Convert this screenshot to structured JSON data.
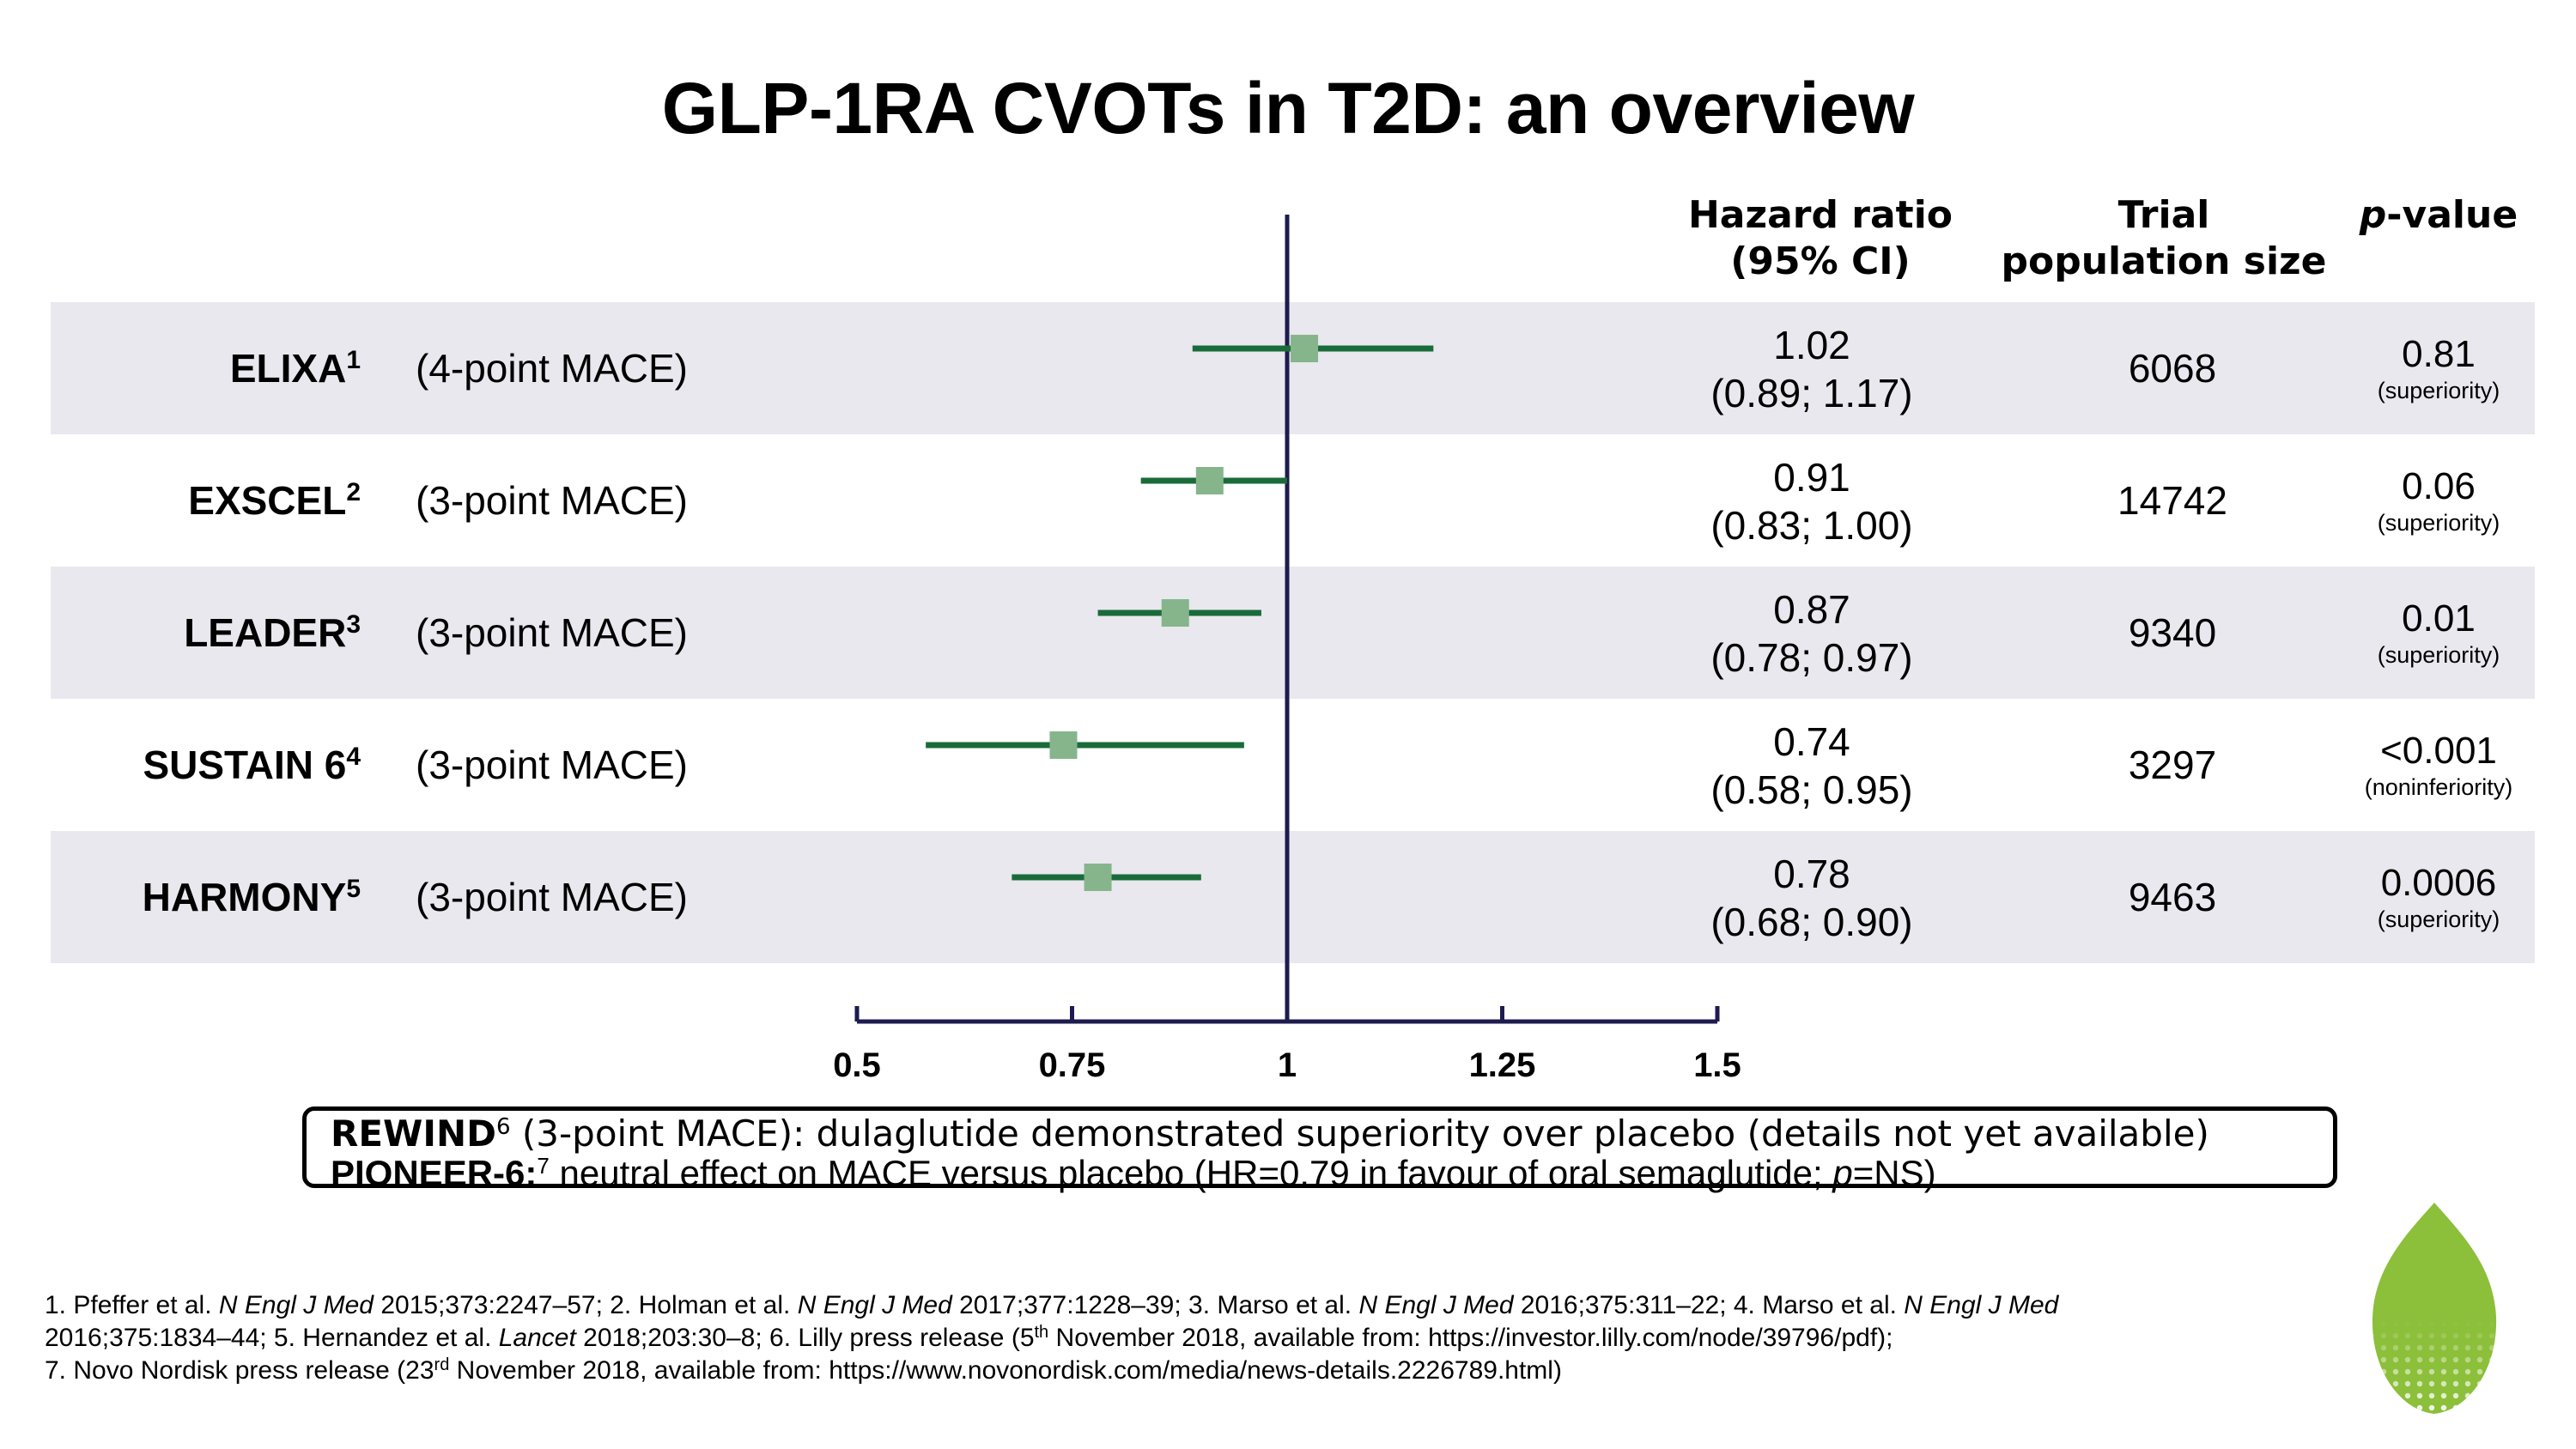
{
  "title": "GLP-1RA CVOTs in T2D: an overview",
  "headers": {
    "hr": "Hazard ratio\n(95% CI)",
    "pop": "Trial\npopulation size",
    "p_italic": "p",
    "p_rest": "-value"
  },
  "colors": {
    "band": "#e9e8ee",
    "ci_line": "#1a6b3a",
    "marker": "#86b58c",
    "axis": "#1d1b4f",
    "logo": "#8cbf3a"
  },
  "rows": [
    {
      "trial": "ELIXA",
      "ref": "1",
      "endpoint": "(4-point MACE)",
      "hr": "1.02",
      "ci": "(0.89; 1.17)",
      "pop": "6068",
      "p": "0.81",
      "p_note": "(superiority)"
    },
    {
      "trial": "EXSCEL",
      "ref": "2",
      "endpoint": "(3-point MACE)",
      "hr": "0.91",
      "ci": "(0.83; 1.00)",
      "pop": "14742",
      "p": "0.06",
      "p_note": "(superiority)"
    },
    {
      "trial": "LEADER",
      "ref": "3",
      "endpoint": "(3-point MACE)",
      "hr": "0.87",
      "ci": "(0.78; 0.97)",
      "pop": "9340",
      "p": "0.01",
      "p_note": "(superiority)"
    },
    {
      "trial": "SUSTAIN 6",
      "ref": "4",
      "endpoint": "(3-point MACE)",
      "hr": "0.74",
      "ci": "(0.58; 0.95)",
      "pop": "3297",
      "p": "<0.001",
      "p_note": "(noninferiority)"
    },
    {
      "trial": "HARMONY",
      "ref": "5",
      "endpoint": "(3-point MACE)",
      "hr": "0.78",
      "ci": "(0.68; 0.90)",
      "pop": "9463",
      "p": "0.0006",
      "p_note": "(superiority)"
    }
  ],
  "chart_data": {
    "type": "forest",
    "categories": [
      "ELIXA",
      "EXSCEL",
      "LEADER",
      "SUSTAIN 6",
      "HARMONY"
    ],
    "series": [
      {
        "values": [
          1.02,
          0.91,
          0.87,
          0.74,
          0.78
        ],
        "lower": [
          0.89,
          0.83,
          0.78,
          0.58,
          0.68
        ],
        "upper": [
          1.17,
          1.0,
          0.97,
          0.95,
          0.9
        ]
      }
    ],
    "xlim": [
      0.5,
      1.5
    ],
    "xticks": [
      "0.5",
      "0.75",
      "1",
      "1.25",
      "1.5"
    ],
    "reference_line": 1,
    "grid": false
  },
  "rewind": {
    "line1_bold": "REWIND",
    "line1_sup": "6",
    "line1_rest": " (3-point MACE): dulaglutide demonstrated superiority over placebo (details not yet available)",
    "line2_bold": "PIONEER-6:",
    "line2_sup": "7",
    "line2_pre": " neutral effect on MACE versus placebo (HR=0.79 in favour of oral semaglutide; ",
    "line2_p": "p",
    "line2_post": "=NS)"
  },
  "references": {
    "r1a": "1. Pfeffer et al. ",
    "j1": "N Engl J Med",
    "r1b": " 2015;373:2247–57; 2. Holman et al. ",
    "j2": "N Engl J Med",
    "r1c": " 2017;377:1228–39; 3. Marso et al. ",
    "j3": "N Engl J Med",
    "r1d": " 2016;375:311–22; 4. Marso et al. ",
    "j4": "N Engl J Med",
    "r2a": "2016;375:1834–44; 5. Hernandez et al. ",
    "j5": "Lancet",
    "r2b": " 2018;203:30–8; 6. Lilly press release (5",
    "sup_th": "th",
    "r2c": " November 2018, available from: https://investor.lilly.com/node/39796/pdf);",
    "r3a": "7. Novo Nordisk press release (23",
    "sup_rd": "rd",
    "r3b": " November 2018, available from: https://www.novonordisk.com/media/news-details.2226789.html)"
  },
  "logo_icon": "leaf-logo-icon"
}
